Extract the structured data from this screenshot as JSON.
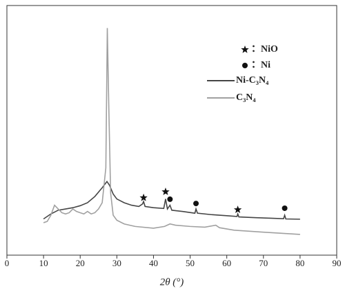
{
  "chart_data": {
    "type": "line",
    "x_label": "2θ (°)",
    "xlim": [
      0,
      90
    ],
    "xticks": [
      0,
      10,
      20,
      30,
      40,
      50,
      60,
      70,
      80,
      90
    ],
    "ylim": [
      0,
      100
    ],
    "series": [
      {
        "name": "Ni-C₃N₄",
        "color": "#444444",
        "x": [
          10,
          12,
          14,
          16,
          18,
          20,
          22,
          24,
          26,
          27.3,
          28,
          29,
          30,
          32,
          34,
          36,
          37,
          37.3,
          37.7,
          40,
          42.8,
          43.3,
          43.8,
          44.5,
          45,
          48,
          51.3,
          51.6,
          52,
          56,
          60,
          62.8,
          63,
          63.3,
          68,
          72,
          75.5,
          75.8,
          76.1,
          80
        ],
        "values": [
          14.5,
          16.5,
          18,
          18.5,
          19,
          19.8,
          21,
          23.5,
          27,
          29.5,
          28,
          24.5,
          22.5,
          21,
          20,
          19.5,
          20.5,
          21.5,
          19.5,
          19,
          18.7,
          22.5,
          18.5,
          20,
          18,
          17.5,
          16.8,
          18.5,
          16.8,
          16.2,
          15.8,
          15.5,
          16.5,
          15.3,
          15,
          14.8,
          14.6,
          16,
          14.5,
          14.4
        ]
      },
      {
        "name": "C₃N₄",
        "color": "#a0a0a0",
        "x": [
          10,
          11,
          12,
          13,
          14,
          15,
          16,
          17,
          18,
          19,
          20,
          21,
          22,
          23,
          24,
          25,
          26,
          27,
          27.4,
          27.8,
          28.3,
          29,
          30,
          32,
          35,
          40,
          43,
          44.5,
          46,
          50,
          54,
          57,
          58,
          62,
          70,
          80
        ],
        "values": [
          13,
          13.5,
          16,
          20,
          18.5,
          17,
          16.5,
          17,
          18.5,
          17.5,
          17,
          16.5,
          17.5,
          16.5,
          17,
          18.5,
          21,
          35,
          91,
          60,
          25,
          16,
          14,
          12.5,
          11.5,
          10.8,
          11.5,
          12.5,
          12,
          11.5,
          11.2,
          12,
          11,
          10,
          9.2,
          8.3
        ]
      }
    ],
    "markers": [
      {
        "symbol": "star",
        "x": 37.3,
        "y": 23
      },
      {
        "symbol": "star",
        "x": 43.3,
        "y": 25.4
      },
      {
        "symbol": "circle",
        "x": 44.5,
        "y": 22.4
      },
      {
        "symbol": "circle",
        "x": 51.6,
        "y": 20.7
      },
      {
        "symbol": "star",
        "x": 63,
        "y": 18.2
      },
      {
        "symbol": "circle",
        "x": 75.8,
        "y": 18.8
      }
    ],
    "marker_legend": [
      {
        "symbol": "star",
        "label": "：NiO"
      },
      {
        "symbol": "circle",
        "label": "：Ni"
      }
    ]
  }
}
